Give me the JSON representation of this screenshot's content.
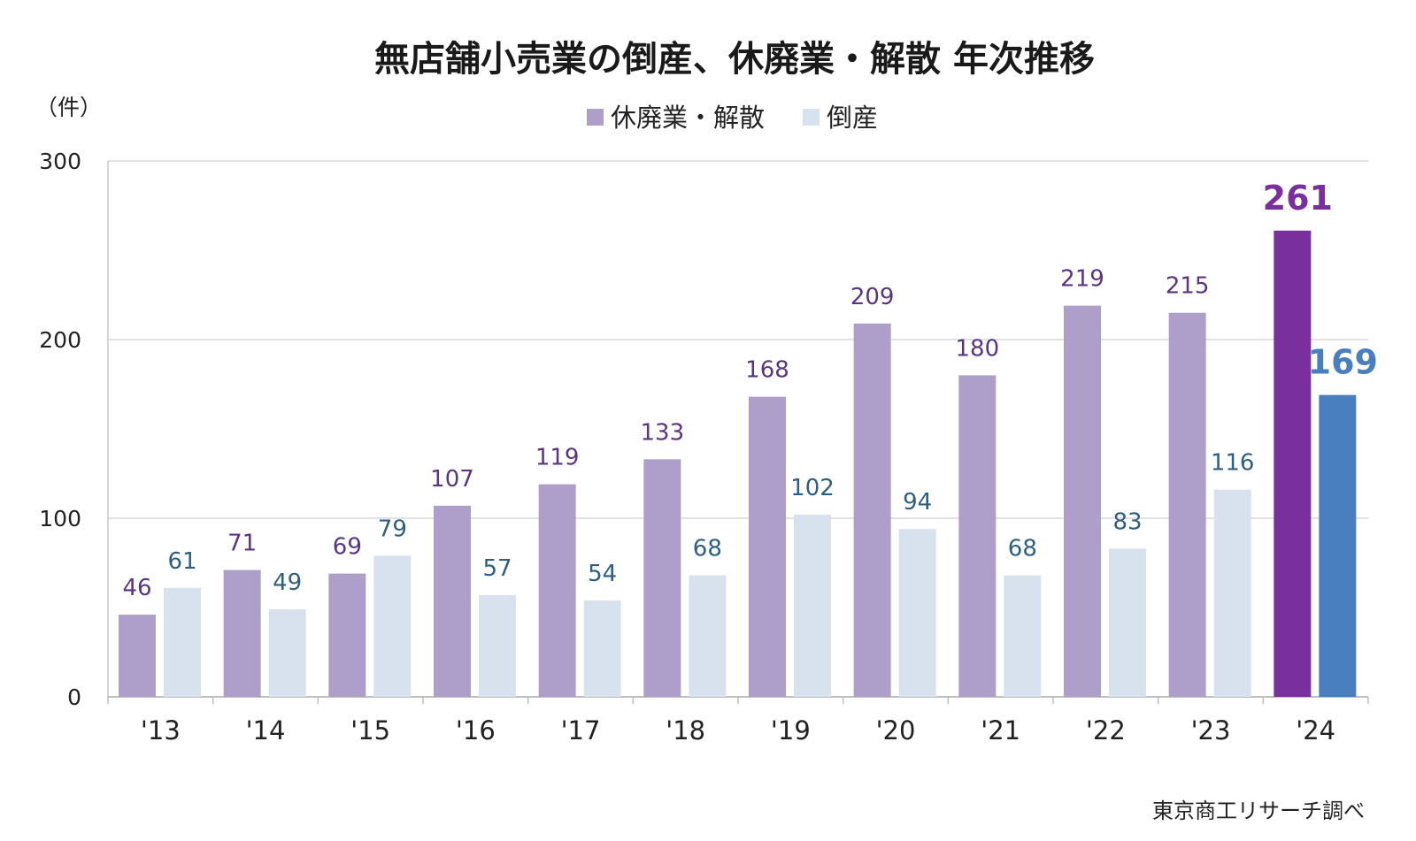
{
  "chart_data": {
    "type": "bar",
    "title": "無店舗小売業の倒産、休廃業・解散 年次推移",
    "unit_label": "（件）",
    "categories": [
      "'13",
      "'14",
      "'15",
      "'16",
      "'17",
      "'18",
      "'19",
      "'20",
      "'21",
      "'22",
      "'23",
      "'24"
    ],
    "series": [
      {
        "name": "休廃業・解散",
        "values": [
          46,
          71,
          69,
          107,
          119,
          133,
          168,
          209,
          180,
          219,
          215,
          261
        ],
        "color": "#ae9fca",
        "highlight_color": "#7a2f9e",
        "label_color": "#5a3680"
      },
      {
        "name": "倒産",
        "values": [
          61,
          49,
          79,
          57,
          54,
          68,
          102,
          94,
          68,
          83,
          116,
          169
        ],
        "color": "#d8e2ef",
        "highlight_color": "#4a7fbf",
        "label_color": "#2f5f80"
      }
    ],
    "ylim": [
      0,
      300
    ],
    "yticks": [
      "0",
      "100",
      "200",
      "300"
    ],
    "grid": true,
    "legend_position": "top-center",
    "highlight_last": true
  },
  "source": "東京商工リサーチ調べ"
}
